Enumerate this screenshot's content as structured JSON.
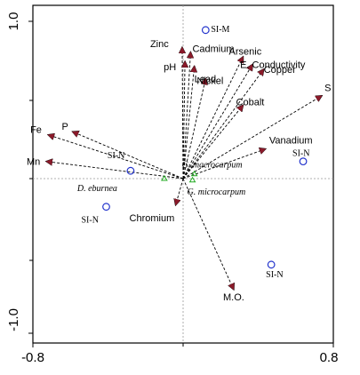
{
  "chart_data": {
    "type": "scatter",
    "title": "",
    "xlabel": "",
    "ylabel": "",
    "xlim": [
      -0.8,
      0.8
    ],
    "ylim": [
      -1.0,
      1.0
    ],
    "x_tick_labels": [
      "-0.8",
      "0.8"
    ],
    "y_tick_labels": [
      "1.0",
      "-1.0"
    ],
    "grid": false,
    "colors": {
      "arrow_head": "#8b1a2a",
      "arrow_line": "#000000",
      "site": "#2233cc",
      "species": "#22aa22"
    },
    "vectors": [
      {
        "name": "Zinc",
        "x": -0.005,
        "y": 0.84
      },
      {
        "name": "pH",
        "x": 0.01,
        "y": 0.75
      },
      {
        "name": "Cadmium",
        "x": 0.04,
        "y": 0.81
      },
      {
        "name": "Lead",
        "x": 0.06,
        "y": 0.72
      },
      {
        "name": "Nickel",
        "x": 0.12,
        "y": 0.64
      },
      {
        "name": "Arsenic",
        "x": 0.32,
        "y": 0.78
      },
      {
        "name": "E. Conductivity",
        "x": 0.37,
        "y": 0.73
      },
      {
        "name": "Copper",
        "x": 0.43,
        "y": 0.7
      },
      {
        "name": "Cobalt",
        "x": 0.32,
        "y": 0.47
      },
      {
        "name": "S",
        "x": 0.74,
        "y": 0.53
      },
      {
        "name": "Vanadium",
        "x": 0.44,
        "y": 0.19
      },
      {
        "name": "Fe",
        "x": -0.72,
        "y": 0.28
      },
      {
        "name": "P",
        "x": -0.59,
        "y": 0.3
      },
      {
        "name": "Mn",
        "x": -0.73,
        "y": 0.11
      },
      {
        "name": "Chromium",
        "x": -0.04,
        "y": -0.17
      },
      {
        "name": "M.O.",
        "x": 0.27,
        "y": -0.71
      }
    ],
    "sites": [
      {
        "name": "SI-M",
        "x": 0.12,
        "y": 0.95
      },
      {
        "name": "SI-N",
        "x": -0.28,
        "y": 0.05
      },
      {
        "name": "SI-N",
        "x": -0.41,
        "y": -0.18
      },
      {
        "name": "SI-N",
        "x": 0.64,
        "y": 0.11
      },
      {
        "name": "SI-N",
        "x": 0.47,
        "y": -0.55
      }
    ],
    "species": [
      {
        "name": "D. eburnea",
        "x": -0.1,
        "y": 0.0
      },
      {
        "name": "G. macrocarpum",
        "x": 0.06,
        "y": 0.03
      },
      {
        "name": "G. microcarpum",
        "x": 0.05,
        "y": -0.01
      }
    ]
  }
}
